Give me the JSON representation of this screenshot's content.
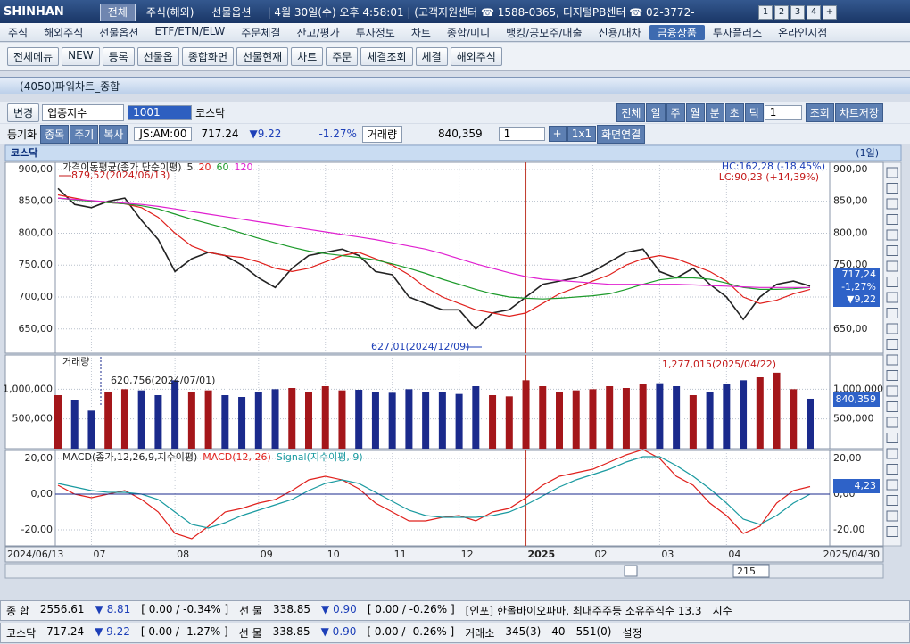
{
  "ui": {
    "logo": "SHINHAN",
    "top_tabs": [
      "전체",
      "주식(해외)",
      "선물옵션"
    ],
    "top_info": "| 4월 30일(수) 오후 4:58:01 | (고객지원센터 ☎ 1588-0365, 디지털PB센터 ☎ 02-3772-",
    "top_buttons": [
      "1",
      "2",
      "3",
      "4",
      "+"
    ],
    "menu": [
      "주식",
      "해외주식",
      "선물옵션",
      "ETF/ETN/ELW",
      "주문체결",
      "잔고/평가",
      "투자정보",
      "차트",
      "종합/미니",
      "뱅킹/공모주/대출",
      "신용/대차",
      "금융상품",
      "투자플러스",
      "온라인지점"
    ],
    "toolbar": [
      "전체메뉴",
      "NEW",
      "등록",
      "선물옵",
      "종합화면",
      "선물현재",
      "차트",
      "주문",
      "체결조회",
      "체결",
      "해외주식"
    ],
    "window_title": "(4050)파워차트_종합",
    "row1": {
      "change": "변경",
      "market": "업종지수",
      "code": "1001",
      "name": "코스닥",
      "periods": [
        "전체",
        "일",
        "주",
        "월",
        "분",
        "초",
        "틱"
      ],
      "count": "1",
      "query": "조회",
      "save": "차트저장"
    },
    "row2": {
      "sync": "동기화",
      "buttons": [
        "종목",
        "주기",
        "복사"
      ],
      "time": "JS:AM:00",
      "price": "717.24",
      "change": "▼9.22",
      "rate": "-1.27%",
      "vol_label": "거래량",
      "volume": "840,359",
      "n": "1",
      "plus": "+",
      "layout": "1x1",
      "link": "화면연결"
    },
    "chart_header": "코스닥",
    "chart_period": "(1일)",
    "x_start_label": "2024/06/13",
    "x_end_label": "2025/04/30",
    "scroll_count": "215",
    "status1": [
      "종 합",
      "2556.61",
      "▼ 8.81",
      "[ 0.00  / -0.34% ]",
      "선 물",
      "338.85",
      "▼ 0.90",
      "[ 0.00  / -0.26% ]",
      "[인포] 한올바이오파마, 최대주주등 소유주식수 13.3",
      "지수"
    ],
    "status2": [
      "코스닥",
      "717.24",
      "▼ 9.22",
      "[ 0.00  / -1.27% ]",
      "선 물",
      "338.85",
      "▼ 0.90",
      "[ 0.00  / -0.26% ]",
      "거래소",
      "345(3)",
      "40",
      "551(0)",
      "설정"
    ]
  },
  "chart_data": [
    {
      "type": "line",
      "legend_title": "가격이동평균(종가 단순이평)",
      "categories": [
        null,
        null,
        "07",
        null,
        null,
        null,
        null,
        "08",
        null,
        null,
        null,
        null,
        "09",
        null,
        null,
        null,
        "10",
        null,
        null,
        null,
        "11",
        null,
        null,
        null,
        "12",
        null,
        null,
        null,
        "2025",
        null,
        null,
        null,
        "02",
        null,
        null,
        null,
        "03",
        null,
        null,
        null,
        "04",
        null,
        null,
        null,
        null,
        null
      ],
      "series": [
        {
          "name": "5",
          "color": "#222222",
          "values": [
            870,
            845,
            840,
            850,
            855,
            820,
            790,
            740,
            760,
            770,
            765,
            750,
            730,
            715,
            745,
            765,
            770,
            775,
            765,
            740,
            735,
            700,
            690,
            680,
            680,
            650,
            675,
            680,
            700,
            720,
            725,
            730,
            740,
            755,
            770,
            775,
            740,
            730,
            745,
            720,
            700,
            665,
            700,
            720,
            725,
            717.24
          ]
        },
        {
          "name": "20",
          "color": "#e0201c",
          "values": [
            860,
            855,
            850,
            848,
            846,
            840,
            825,
            800,
            780,
            770,
            765,
            762,
            755,
            745,
            740,
            745,
            755,
            765,
            770,
            760,
            750,
            735,
            715,
            700,
            690,
            680,
            675,
            670,
            675,
            690,
            705,
            715,
            725,
            735,
            750,
            760,
            765,
            760,
            750,
            740,
            725,
            700,
            690,
            695,
            705,
            712
          ]
        },
        {
          "name": "60",
          "color": "#1c9a2a",
          "values": [
            855,
            852,
            850,
            848,
            846,
            843,
            838,
            830,
            822,
            815,
            808,
            800,
            792,
            785,
            778,
            772,
            768,
            765,
            762,
            758,
            752,
            745,
            737,
            728,
            720,
            712,
            705,
            700,
            698,
            697,
            698,
            700,
            702,
            705,
            712,
            720,
            727,
            730,
            730,
            728,
            722,
            715,
            712,
            712,
            713,
            715
          ]
        },
        {
          "name": "120",
          "color": "#e020d0",
          "values": [
            855,
            853,
            851,
            849,
            847,
            845,
            842,
            838,
            834,
            830,
            826,
            822,
            818,
            814,
            810,
            806,
            802,
            798,
            794,
            790,
            785,
            780,
            775,
            768,
            760,
            752,
            745,
            738,
            732,
            728,
            726,
            724,
            722,
            720,
            720,
            720,
            720,
            720,
            719,
            718,
            717,
            716,
            715,
            715,
            715,
            715
          ]
        }
      ],
      "ylim": [
        612,
        911
      ],
      "yticks": [
        {
          "value": 650,
          "label": "650,00"
        },
        {
          "value": 700,
          "label": "700,00"
        },
        {
          "value": 750,
          "label": "750,00"
        },
        {
          "value": 800,
          "label": "800,00"
        },
        {
          "value": 850,
          "label": "850,00"
        },
        {
          "value": 900,
          "label": "900,00"
        }
      ],
      "annotations": [
        "879,52(2024/06/13)",
        "627,01(2024/12/09)",
        "HC:162,28 (-18,45%)",
        "LC:90,23 (+14,39%)"
      ],
      "current_labels": [
        "717,24",
        "-1,27%",
        "▼9,22"
      ]
    },
    {
      "type": "bar",
      "title": "거래량",
      "values": [
        900000,
        820000,
        640000,
        950000,
        1000000,
        980000,
        900000,
        1150000,
        950000,
        980000,
        900000,
        870000,
        950000,
        1000000,
        1020000,
        960000,
        1050000,
        980000,
        990000,
        950000,
        940000,
        1000000,
        950000,
        960000,
        920000,
        1050000,
        900000,
        880000,
        1150000,
        1050000,
        950000,
        980000,
        1000000,
        1050000,
        1020000,
        1080000,
        1100000,
        1050000,
        900000,
        950000,
        1080000,
        1150000,
        1200000,
        1277015,
        1000000,
        840359
      ],
      "colors": [
        "#a4161a",
        "#1a2a8c",
        "#1a2a8c",
        "#a4161a",
        "#a4161a",
        "#1a2a8c",
        "#1a2a8c",
        "#1a2a8c",
        "#a4161a",
        "#a4161a",
        "#1a2a8c",
        "#1a2a8c",
        "#1a2a8c",
        "#1a2a8c",
        "#a4161a",
        "#a4161a",
        "#a4161a",
        "#a4161a",
        "#1a2a8c",
        "#1a2a8c",
        "#1a2a8c",
        "#1a2a8c",
        "#1a2a8c",
        "#1a2a8c",
        "#1a2a8c",
        "#1a2a8c",
        "#a4161a",
        "#a4161a",
        "#a4161a",
        "#a4161a",
        "#a4161a",
        "#a4161a",
        "#a4161a",
        "#a4161a",
        "#a4161a",
        "#a4161a",
        "#1a2a8c",
        "#1a2a8c",
        "#a4161a",
        "#1a2a8c",
        "#1a2a8c",
        "#1a2a8c",
        "#a4161a",
        "#a4161a",
        "#a4161a",
        "#1a2a8c"
      ],
      "ylim": [
        0,
        1575000
      ],
      "yticks": [
        {
          "value": 500000,
          "label": "500,000"
        },
        {
          "value": 1000000,
          "label": "1,000,000"
        }
      ],
      "annotations": [
        "620,756(2024/07/01)",
        "1,277,015(2025/04/22)"
      ],
      "current_labels": [
        "840,359"
      ]
    },
    {
      "type": "line",
      "title": "MACD(종가,12,26,9,지수이평)",
      "series": [
        {
          "name": "MACD(12, 26)",
          "color": "#e0201c",
          "values": [
            5,
            0,
            -2,
            0,
            2,
            -3,
            -10,
            -22,
            -25,
            -18,
            -10,
            -8,
            -5,
            -3,
            2,
            8,
            10,
            8,
            3,
            -5,
            -10,
            -15,
            -15,
            -13,
            -12,
            -15,
            -10,
            -8,
            -2,
            5,
            10,
            12,
            14,
            18,
            22,
            25,
            20,
            10,
            5,
            -5,
            -12,
            -22,
            -18,
            -5,
            2,
            4.23
          ]
        },
        {
          "name": "Signal(지수이평, 9)",
          "color": "#1a9aa0",
          "values": [
            6,
            4,
            2,
            1,
            1,
            0,
            -3,
            -10,
            -17,
            -19,
            -16,
            -12,
            -9,
            -6,
            -3,
            2,
            6,
            8,
            6,
            1,
            -4,
            -9,
            -12,
            -13,
            -13,
            -13,
            -12,
            -10,
            -6,
            -1,
            4,
            8,
            11,
            14,
            18,
            21,
            21,
            16,
            10,
            3,
            -5,
            -14,
            -17,
            -12,
            -5,
            0
          ]
        }
      ],
      "ylim": [
        -29,
        24.5
      ],
      "yticks": [
        {
          "value": -20,
          "label": "-20,00"
        },
        {
          "value": 0,
          "label": "0,00"
        },
        {
          "value": 20,
          "label": "20,00"
        }
      ],
      "current_labels": [
        "4,23"
      ]
    }
  ]
}
